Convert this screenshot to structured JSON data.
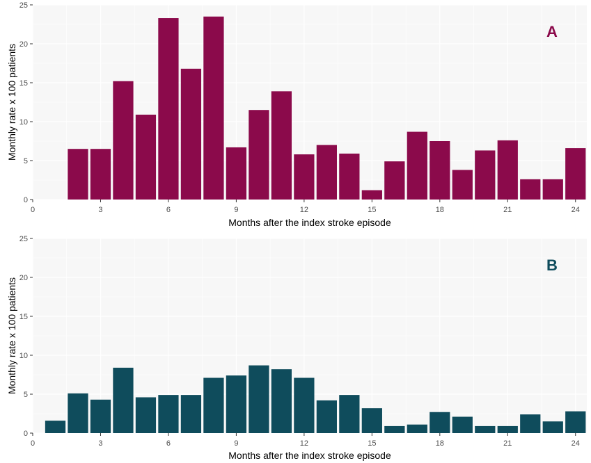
{
  "chart_data": [
    {
      "type": "bar",
      "panel_label": "A",
      "color": "#8b0a4b",
      "xlabel": "Months after the index stroke episode",
      "ylabel": "Monthly rate x 100 patients",
      "xlim": [
        0,
        24.5
      ],
      "ylim": [
        0,
        25
      ],
      "xticks": [
        0,
        3,
        6,
        9,
        12,
        15,
        18,
        21,
        24
      ],
      "yticks": [
        0,
        5,
        10,
        15,
        20,
        25
      ],
      "grid": true,
      "x": [
        2,
        3,
        4,
        5,
        6,
        7,
        8,
        9,
        10,
        11,
        12,
        13,
        14,
        15,
        16,
        17,
        18,
        19,
        20,
        21,
        22,
        23,
        24
      ],
      "values": [
        6.5,
        6.5,
        15.2,
        10.9,
        23.3,
        16.8,
        23.5,
        6.7,
        11.5,
        13.9,
        5.8,
        7.0,
        5.9,
        1.2,
        4.9,
        8.7,
        7.5,
        3.8,
        6.3,
        7.6,
        2.6,
        2.6,
        6.6
      ]
    },
    {
      "type": "bar",
      "panel_label": "B",
      "color": "#0f4c5c",
      "xlabel": "Months after the index stroke episode",
      "ylabel": "Monthly rate x 100 patients",
      "xlim": [
        0,
        24.5
      ],
      "ylim": [
        0,
        25
      ],
      "xticks": [
        0,
        3,
        6,
        9,
        12,
        15,
        18,
        21,
        24
      ],
      "yticks": [
        0,
        5,
        10,
        15,
        20,
        25
      ],
      "grid": true,
      "x": [
        1,
        2,
        3,
        4,
        5,
        6,
        7,
        8,
        9,
        10,
        11,
        12,
        13,
        14,
        15,
        16,
        17,
        18,
        19,
        20,
        21,
        22,
        23,
        24
      ],
      "values": [
        1.6,
        5.1,
        4.3,
        8.4,
        4.6,
        4.9,
        4.9,
        7.1,
        7.4,
        8.7,
        8.2,
        7.1,
        4.2,
        4.9,
        3.2,
        0.9,
        1.1,
        2.7,
        2.1,
        0.9,
        0.9,
        2.4,
        1.5,
        2.8
      ]
    }
  ]
}
